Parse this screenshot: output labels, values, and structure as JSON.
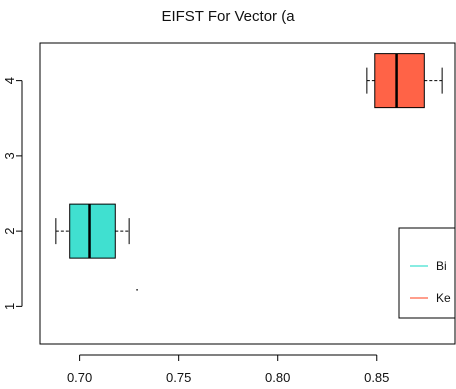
{
  "chart_data": {
    "type": "boxplot",
    "title": "EIFST For Vector (a",
    "orientation": "horizontal",
    "xlim": [
      0.68,
      0.89
    ],
    "ylim": [
      0.5,
      4.5
    ],
    "x_ticks": [
      0.7,
      0.75,
      0.8,
      0.85
    ],
    "x_tick_labels": [
      "0.70",
      "0.75",
      "0.80",
      "0.85"
    ],
    "y_ticks": [
      1,
      2,
      3,
      4
    ],
    "y_tick_labels": [
      "1",
      "2",
      "3",
      "4"
    ],
    "xlabel": "",
    "ylabel": "",
    "grid": false,
    "legend_position": "right",
    "series": [
      {
        "name": "Bi",
        "position": 2,
        "color": "#40E0D0",
        "whisker_low": 0.688,
        "q1": 0.695,
        "median": 0.705,
        "q3": 0.718,
        "whisker_high": 0.725
      },
      {
        "name": "Ke",
        "position": 4,
        "color": "#FF6347",
        "whisker_low": 0.845,
        "q1": 0.849,
        "median": 0.86,
        "q3": 0.874,
        "whisker_high": 0.883
      }
    ],
    "stray_points": [
      {
        "x": 0.729,
        "y": 1.22
      }
    ]
  }
}
